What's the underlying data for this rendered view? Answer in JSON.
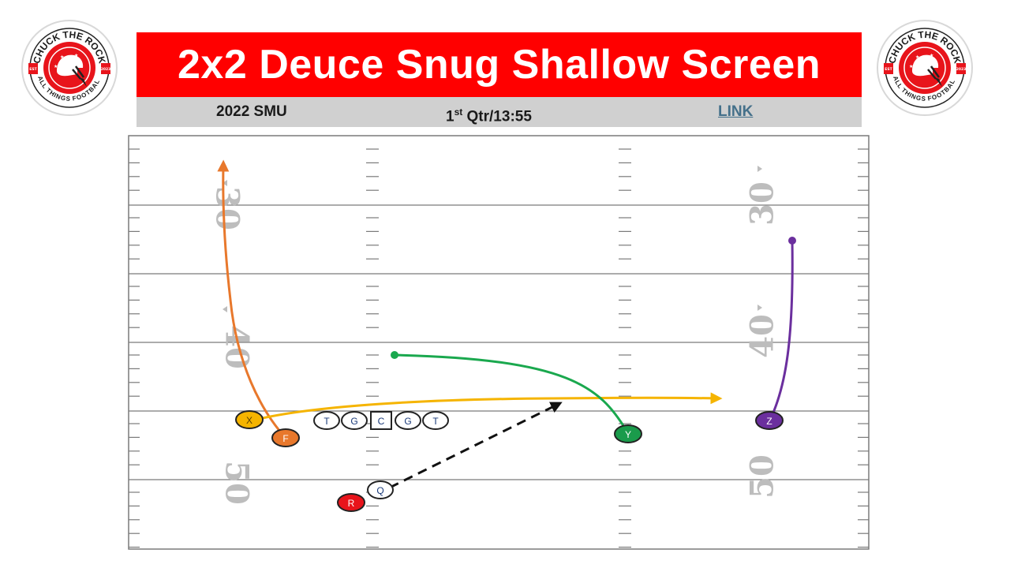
{
  "header": {
    "title": "2x2 Deuce Snug Shallow Screen",
    "team": "2022 SMU",
    "quarter_ordinal": "1",
    "quarter_suffix": "st",
    "quarter_rest": " Qtr/13:55",
    "link_label": "LINK"
  },
  "logo": {
    "top_text": "CHUCK THE ROCK",
    "bottom_text": "ALL THINGS FOOTBALL",
    "est_left": "EST",
    "est_right": "2023",
    "accent_color": "#e8141b"
  },
  "field": {
    "yard_numbers": [
      "30",
      "40",
      "50"
    ],
    "line_color": "#7a7a7a",
    "number_color": "#bdbdbd"
  },
  "players": [
    {
      "label": "X",
      "fill": "#f5b400",
      "text_color": "#5a4100"
    },
    {
      "label": "F",
      "fill": "#e8782c",
      "text_color": "#ffffff"
    },
    {
      "label": "T",
      "fill": "#ffffff",
      "text_color": "#1a3a7a"
    },
    {
      "label": "G",
      "fill": "#ffffff",
      "text_color": "#1a3a7a"
    },
    {
      "label": "C",
      "fill": "#ffffff",
      "text_color": "#1a3a7a"
    },
    {
      "label": "G",
      "fill": "#ffffff",
      "text_color": "#1a3a7a"
    },
    {
      "label": "T",
      "fill": "#ffffff",
      "text_color": "#1a3a7a"
    },
    {
      "label": "Y",
      "fill": "#1a9b4b",
      "text_color": "#ffffff"
    },
    {
      "label": "Z",
      "fill": "#6b2f9e",
      "text_color": "#ffffff"
    },
    {
      "label": "Q",
      "fill": "#ffffff",
      "text_color": "#1a3a7a"
    },
    {
      "label": "R",
      "fill": "#e8141b",
      "text_color": "#ffffff"
    }
  ],
  "routes": [
    {
      "player": "F",
      "color": "#e8782c",
      "style": "solid",
      "end": "arrow"
    },
    {
      "player": "X",
      "color": "#f5b400",
      "style": "solid",
      "end": "arrow"
    },
    {
      "player": "Y",
      "color": "#1aa84e",
      "style": "solid",
      "end": "dot"
    },
    {
      "player": "Z",
      "color": "#6b2f9e",
      "style": "solid",
      "end": "dot"
    },
    {
      "player": "Q",
      "color": "#111111",
      "style": "dashed",
      "end": "arrow"
    }
  ]
}
